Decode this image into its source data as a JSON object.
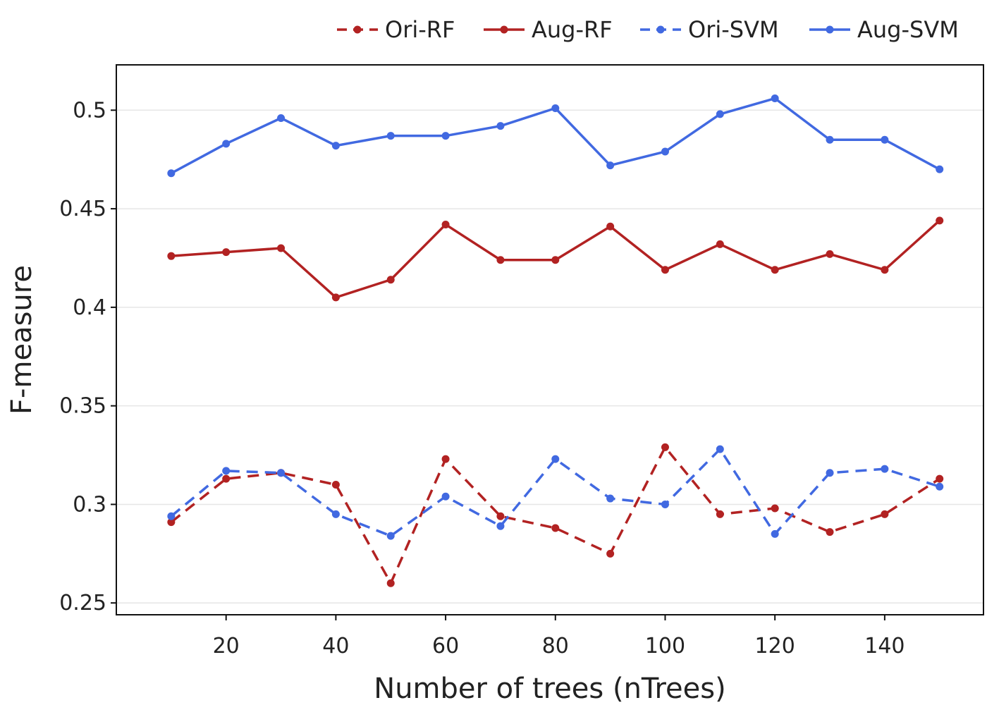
{
  "chart_data": {
    "type": "line",
    "title": "",
    "xlabel": "Number of trees (nTrees)",
    "ylabel": "F-measure",
    "x": [
      10,
      20,
      30,
      40,
      50,
      60,
      70,
      80,
      90,
      100,
      110,
      120,
      130,
      140,
      150
    ],
    "xlim": [
      0,
      158
    ],
    "ylim": [
      0.244,
      0.523
    ],
    "x_ticks": [
      20,
      40,
      60,
      80,
      100,
      120,
      140
    ],
    "x_tick_labels": [
      "20",
      "40",
      "60",
      "80",
      "100",
      "120",
      "140"
    ],
    "y_ticks": [
      0.25,
      0.3,
      0.35,
      0.4,
      0.45,
      0.5
    ],
    "y_tick_labels": [
      "0.25",
      "0.3",
      "0.35",
      "0.4",
      "0.45",
      "0.5"
    ],
    "grid": true,
    "legend_position": "top-right",
    "series": [
      {
        "name": "Ori-RF",
        "color": "#b22222",
        "dash": true,
        "values": [
          0.291,
          0.313,
          0.316,
          0.31,
          0.26,
          0.323,
          0.294,
          0.288,
          0.275,
          0.329,
          0.295,
          0.298,
          0.286,
          0.295,
          0.313
        ]
      },
      {
        "name": "Aug-RF",
        "color": "#b22222",
        "dash": false,
        "values": [
          0.426,
          0.428,
          0.43,
          0.405,
          0.414,
          0.442,
          0.424,
          0.424,
          0.441,
          0.419,
          0.432,
          0.419,
          0.427,
          0.419,
          0.444
        ]
      },
      {
        "name": "Ori-SVM",
        "color": "#4169e1",
        "dash": true,
        "values": [
          0.294,
          0.317,
          0.316,
          0.295,
          0.284,
          0.304,
          0.289,
          0.323,
          0.303,
          0.3,
          0.328,
          0.285,
          0.316,
          0.318,
          0.309
        ]
      },
      {
        "name": "Aug-SVM",
        "color": "#4169e1",
        "dash": false,
        "values": [
          0.468,
          0.483,
          0.496,
          0.482,
          0.487,
          0.487,
          0.492,
          0.501,
          0.472,
          0.479,
          0.498,
          0.506,
          0.485,
          0.485,
          0.47
        ]
      }
    ]
  }
}
